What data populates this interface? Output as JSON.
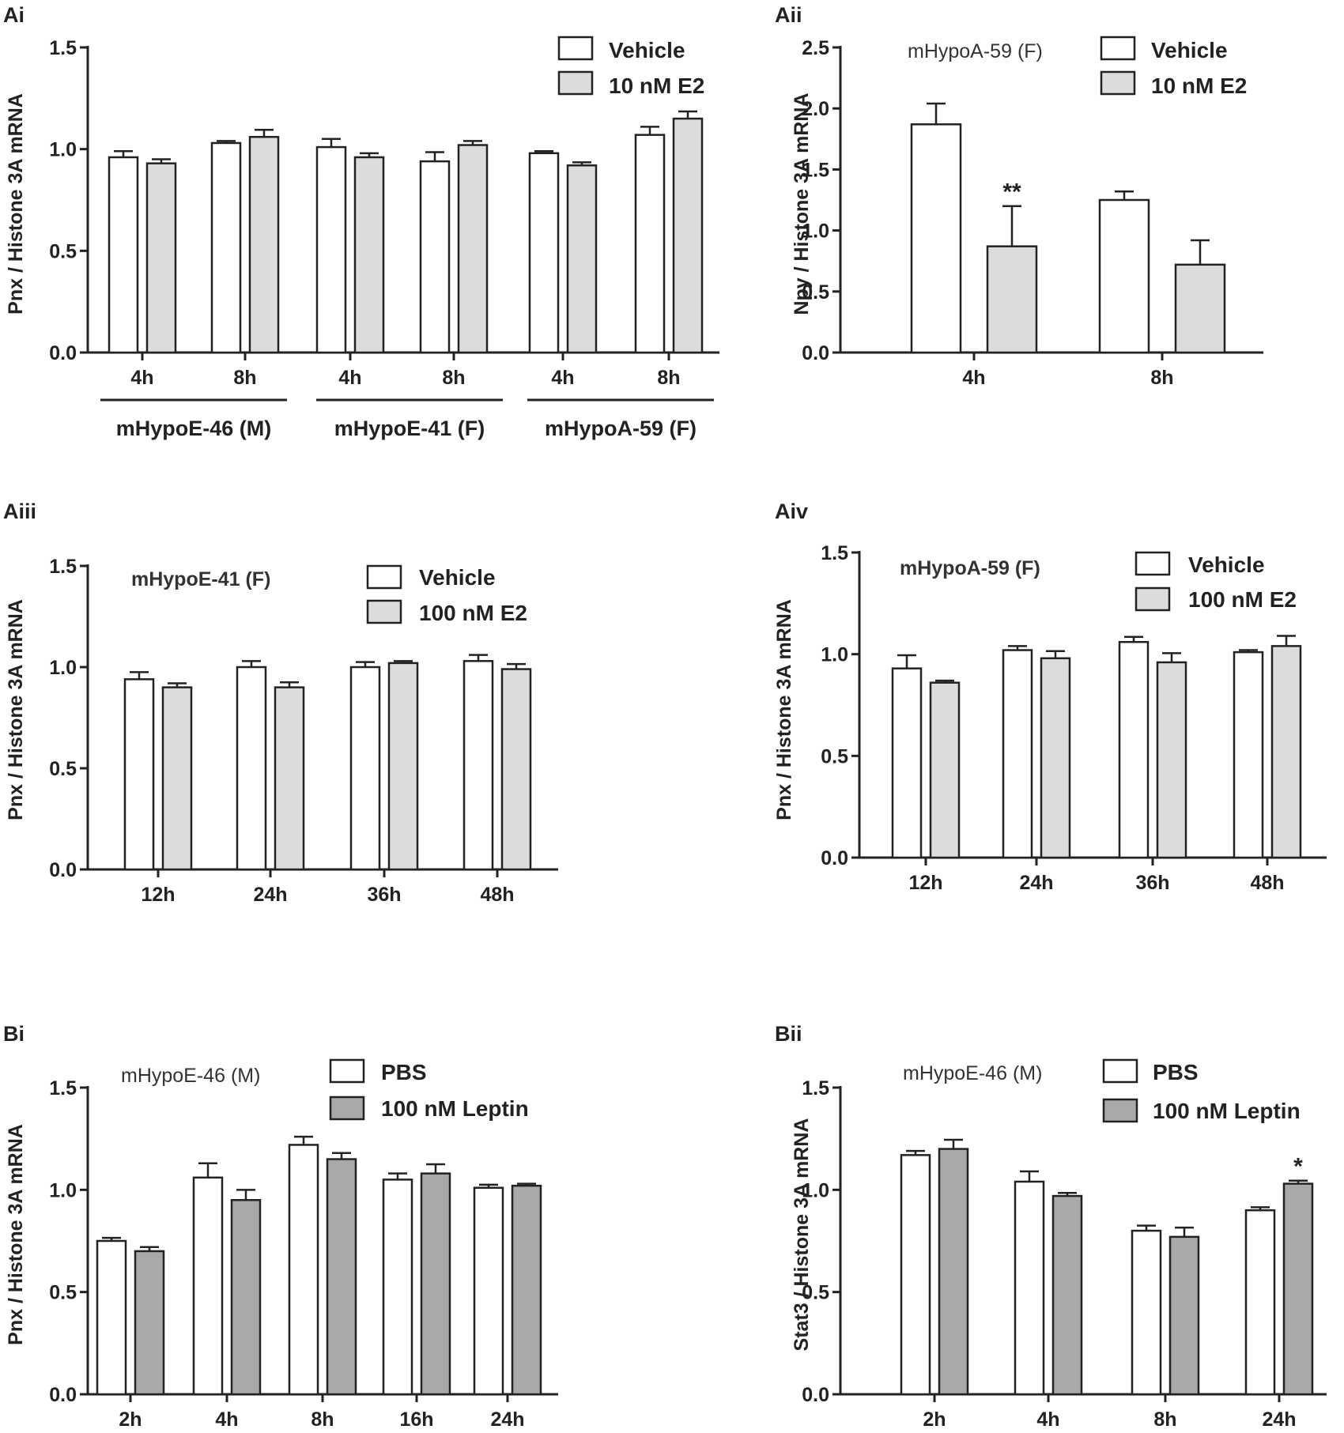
{
  "colors": {
    "vehicle": "#ffffff",
    "e2": "#dcdcdc",
    "leptin": "#a9a9a9",
    "stroke": "#222222"
  },
  "chart_data": [
    {
      "panel": "Ai",
      "type": "bar",
      "ylabel": "Pnx / Histone 3A mRNA",
      "ylim": [
        0,
        1.5
      ],
      "yticks": [
        "0.0",
        "0.5",
        "1.0",
        "1.5"
      ],
      "categories": [
        "4h",
        "8h",
        "4h",
        "8h",
        "4h",
        "8h"
      ],
      "groups": [
        "mHypoE-46 (M)",
        "mHypoE-41 (F)",
        "mHypoA-59 (F)"
      ],
      "legend": [
        "Vehicle",
        "10 nM E2"
      ],
      "series": [
        {
          "name": "Vehicle",
          "values": [
            0.96,
            1.03,
            1.01,
            0.94,
            0.98,
            1.07
          ],
          "errors": [
            0.03,
            0.01,
            0.04,
            0.045,
            0.01,
            0.04
          ]
        },
        {
          "name": "10 nM E2",
          "values": [
            0.93,
            1.06,
            0.96,
            1.02,
            0.92,
            1.15
          ],
          "errors": [
            0.02,
            0.035,
            0.02,
            0.02,
            0.015,
            0.035
          ]
        }
      ]
    },
    {
      "panel": "Aii",
      "type": "bar",
      "ylabel": "Npy / Histone 3A mRNA",
      "ylim": [
        0,
        2.5
      ],
      "yticks": [
        "0.0",
        "0.5",
        "1.0",
        "1.5",
        "2.0",
        "2.5"
      ],
      "categories": [
        "4h",
        "8h"
      ],
      "annotation": "mHypoA-59 (F)",
      "legend": [
        "Vehicle",
        "10 nM E2"
      ],
      "significance": [
        {
          "series": 1,
          "index": 0,
          "label": "**"
        }
      ],
      "series": [
        {
          "name": "Vehicle",
          "values": [
            1.87,
            1.25
          ],
          "errors": [
            0.17,
            0.07
          ]
        },
        {
          "name": "10 nM E2",
          "values": [
            0.87,
            0.72
          ],
          "errors": [
            0.33,
            0.2
          ]
        }
      ]
    },
    {
      "panel": "Aiii",
      "type": "bar",
      "ylabel": "Pnx / Histone 3A mRNA",
      "ylim": [
        0,
        1.5
      ],
      "yticks": [
        "0.0",
        "0.5",
        "1.0",
        "1.5"
      ],
      "categories": [
        "12h",
        "24h",
        "36h",
        "48h"
      ],
      "annotation": "mHypoE-41 (F)",
      "legend": [
        "Vehicle",
        "100 nM E2"
      ],
      "series": [
        {
          "name": "Vehicle",
          "values": [
            0.94,
            1.0,
            1.0,
            1.03
          ],
          "errors": [
            0.035,
            0.03,
            0.025,
            0.03
          ]
        },
        {
          "name": "100 nM E2",
          "values": [
            0.9,
            0.9,
            1.02,
            0.99
          ],
          "errors": [
            0.02,
            0.025,
            0.01,
            0.025
          ]
        }
      ]
    },
    {
      "panel": "Aiv",
      "type": "bar",
      "ylabel": "Pnx / Histone 3A mRNA",
      "ylim": [
        0,
        1.5
      ],
      "yticks": [
        "0.0",
        "0.5",
        "1.0",
        "1.5"
      ],
      "categories": [
        "12h",
        "24h",
        "36h",
        "48h"
      ],
      "annotation": "mHypoA-59 (F)",
      "legend": [
        "Vehicle",
        "100 nM E2"
      ],
      "series": [
        {
          "name": "Vehicle",
          "values": [
            0.93,
            1.02,
            1.06,
            1.01
          ],
          "errors": [
            0.065,
            0.02,
            0.025,
            0.01
          ]
        },
        {
          "name": "100 nM E2",
          "values": [
            0.86,
            0.98,
            0.96,
            1.04
          ],
          "errors": [
            0.01,
            0.035,
            0.045,
            0.05
          ]
        }
      ]
    },
    {
      "panel": "Bi",
      "type": "bar",
      "ylabel": "Pnx / Histone 3A mRNA",
      "ylim": [
        0,
        1.5
      ],
      "yticks": [
        "0.0",
        "0.5",
        "1.0",
        "1.5"
      ],
      "categories": [
        "2h",
        "4h",
        "8h",
        "16h",
        "24h"
      ],
      "annotation": "mHypoE-46 (M)",
      "legend": [
        "PBS",
        "100 nM Leptin"
      ],
      "series": [
        {
          "name": "PBS",
          "values": [
            0.75,
            1.06,
            1.22,
            1.05,
            1.01
          ],
          "errors": [
            0.015,
            0.07,
            0.04,
            0.03,
            0.015
          ]
        },
        {
          "name": "100 nM Leptin",
          "values": [
            0.7,
            0.95,
            1.15,
            1.08,
            1.02
          ],
          "errors": [
            0.02,
            0.05,
            0.03,
            0.045,
            0.01
          ]
        }
      ]
    },
    {
      "panel": "Bii",
      "type": "bar",
      "ylabel": "Stat3 / Histone 3A mRNA",
      "ylim": [
        0,
        1.5
      ],
      "yticks": [
        "0.0",
        "0.5",
        "1.0",
        "1.5"
      ],
      "categories": [
        "2h",
        "4h",
        "8h",
        "24h"
      ],
      "annotation": "mHypoE-46 (M)",
      "legend": [
        "PBS",
        "100 nM Leptin"
      ],
      "significance": [
        {
          "series": 1,
          "index": 3,
          "label": "*"
        }
      ],
      "series": [
        {
          "name": "PBS",
          "values": [
            1.17,
            1.04,
            0.8,
            0.9
          ],
          "errors": [
            0.02,
            0.05,
            0.025,
            0.015
          ]
        },
        {
          "name": "100 nM Leptin",
          "values": [
            1.2,
            0.97,
            0.77,
            1.03
          ],
          "errors": [
            0.045,
            0.015,
            0.045,
            0.015
          ]
        }
      ]
    }
  ]
}
